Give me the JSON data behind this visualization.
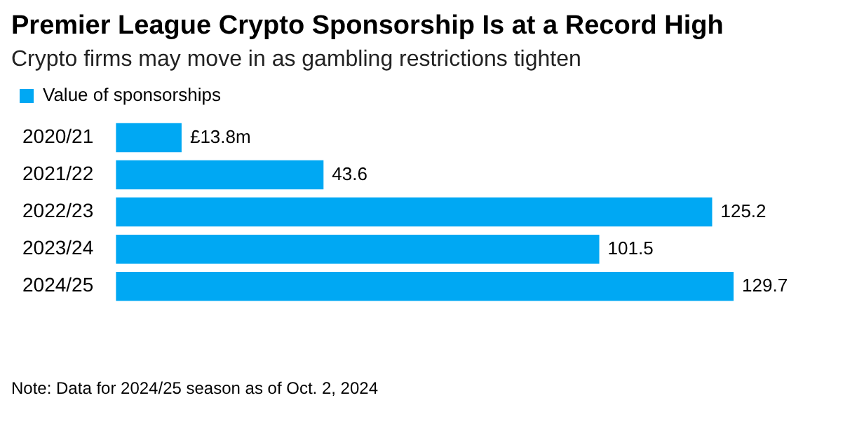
{
  "chart_data": {
    "type": "bar",
    "orientation": "horizontal",
    "title": "Premier League Crypto Sponsorship Is at a Record High",
    "subtitle": "Crypto firms may move in as gambling restrictions tighten",
    "categories": [
      "2020/21",
      "2021/22",
      "2022/23",
      "2023/24",
      "2024/25"
    ],
    "series": [
      {
        "name": "Value of sponsorships",
        "color": "#00a8f3",
        "values": [
          13.8,
          43.6,
          125.2,
          101.5,
          129.7
        ],
        "value_labels": [
          "£13.8m",
          "43.6",
          "125.2",
          "101.5",
          "129.7"
        ]
      }
    ],
    "legend": "top left",
    "grid": false,
    "annotations": [
      "Note: Data for 2024/25 season as of Oct. 2, 2024"
    ]
  }
}
